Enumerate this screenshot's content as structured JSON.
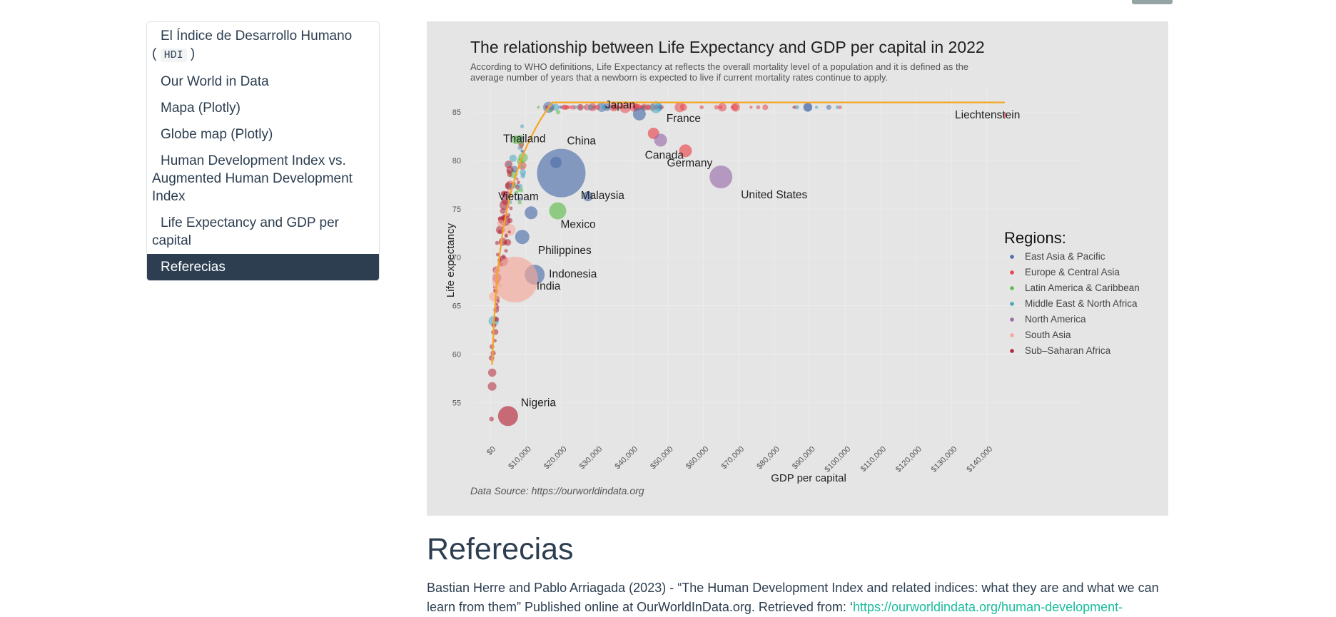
{
  "toc": {
    "items": [
      {
        "label": "El Índice de Desarrollo Humano",
        "code": "HDI",
        "open_paren": "(",
        "close_paren": ")"
      },
      {
        "label": "Our World in Data"
      },
      {
        "label": "Mapa (Plotly)"
      },
      {
        "label": "Globe map (Plotly)"
      },
      {
        "label": "Human Development Index vs. Augmented Human Development Index"
      },
      {
        "label": "Life Expectancy and GDP per capital"
      },
      {
        "label": "Referecias",
        "active": true
      }
    ]
  },
  "figure": {
    "title": "The relationship between Life Expectancy and GDP per capital in 2022",
    "subtitle_line1": "According to WHO definitions, Life Expectancy at reflects the overall mortality level of a population and it is defined as the",
    "subtitle_line2": "average number of years that a newborn is expected to live if current mortality rates continue to apply.",
    "source": "Data Source: https://ourworldindata.org"
  },
  "chart_data": {
    "type": "scatter",
    "title": "The relationship between Life Expectancy and GDP per capital in 2022",
    "xlabel": "GDP per capital",
    "ylabel": "Life expectancy",
    "xlim": [
      0,
      145000
    ],
    "ylim": [
      52,
      87
    ],
    "x_ticks": [
      "$0",
      "$10,000",
      "$20,000",
      "$30,000",
      "$40,000",
      "$50,000",
      "$60,000",
      "$70,000",
      "$80,000",
      "$90,000",
      "$100,000",
      "$110,000",
      "$120,000",
      "$130,000",
      "$140,000"
    ],
    "y_ticks": [
      55,
      60,
      65,
      70,
      75,
      80,
      85
    ],
    "legend_title": "Regions:",
    "legend_position": "right",
    "regions": [
      {
        "name": "East Asia & Pacific",
        "color": "#4e6fab"
      },
      {
        "name": "Europe & Central Asia",
        "color": "#e8474d"
      },
      {
        "name": "Latin America & Caribbean",
        "color": "#5fbb4d"
      },
      {
        "name": "Middle East & North Africa",
        "color": "#4aa5c2"
      },
      {
        "name": "North America",
        "color": "#9b6fab"
      },
      {
        "name": "South Asia",
        "color": "#f5a898"
      },
      {
        "name": "Sub–Saharan Africa",
        "color": "#b5283b"
      }
    ],
    "trend": "logarithmic fit",
    "labeled_points": [
      {
        "country": "Japan",
        "gdp": 42000,
        "life": 84.8,
        "region": 0,
        "size": 9
      },
      {
        "country": "France",
        "gdp": 46000,
        "life": 82.8,
        "region": 1,
        "size": 8
      },
      {
        "country": "Thailand",
        "gdp": 18500,
        "life": 79.8,
        "region": 0,
        "size": 8
      },
      {
        "country": "China",
        "gdp": 20000,
        "life": 78.7,
        "region": 0,
        "size": 34
      },
      {
        "country": "Canada",
        "gdp": 48000,
        "life": 82.1,
        "region": 4,
        "size": 9
      },
      {
        "country": "Germany",
        "gdp": 55000,
        "life": 81.0,
        "region": 1,
        "size": 9
      },
      {
        "country": "Malaysia",
        "gdp": 27500,
        "life": 76.3,
        "region": 0,
        "size": 7
      },
      {
        "country": "United States",
        "gdp": 65000,
        "life": 78.3,
        "region": 4,
        "size": 16
      },
      {
        "country": "Vietnam",
        "gdp": 11500,
        "life": 74.6,
        "region": 0,
        "size": 9
      },
      {
        "country": "Mexico",
        "gdp": 19000,
        "life": 74.8,
        "region": 2,
        "size": 12
      },
      {
        "country": "Philippines",
        "gdp": 9000,
        "life": 72.1,
        "region": 0,
        "size": 10
      },
      {
        "country": "Indonesia",
        "gdp": 12500,
        "life": 68.2,
        "region": 0,
        "size": 14
      },
      {
        "country": "India",
        "gdp": 7000,
        "life": 67.7,
        "region": 5,
        "size": 32
      },
      {
        "country": "Nigeria",
        "gdp": 5000,
        "life": 53.6,
        "region": 6,
        "size": 14
      },
      {
        "country": "Liechtenstein",
        "gdp": 145000,
        "life": 84.7,
        "region": 1,
        "size": 3
      }
    ]
  },
  "references": {
    "heading": "Referecias",
    "line1": "Bastian Herre and Pablo Arriagada (2023) - “The Human Development Index and related indices: what they are and what we can",
    "line2_text": "learn from them” Published online at OurWorldInData.org. Retrieved from: ‘",
    "line2_link": "https://ourworldindata.org/human-development-"
  }
}
